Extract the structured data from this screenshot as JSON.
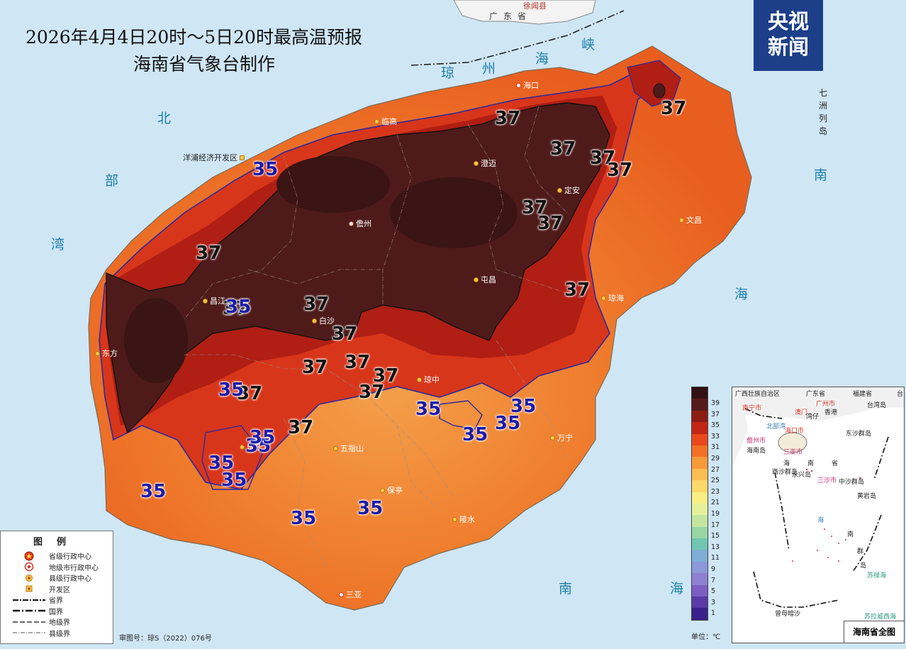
{
  "title": {
    "line1": "2026年4月4日20时～5日20时最高温预报",
    "line2": "海南省气象台制作"
  },
  "logo": {
    "line1": "央视",
    "line2": "新闻"
  },
  "sea_labels": {
    "strait": [
      "琼",
      "州",
      "海",
      "峡"
    ],
    "beibu": [
      "北",
      "部",
      "湾"
    ],
    "west_sea": "海",
    "east_south": "南",
    "east_sea": "海",
    "bottom_south": "南",
    "bottom_sea": "海",
    "qizhou": [
      "七",
      "洲",
      "列",
      "岛"
    ]
  },
  "guangdong": {
    "province": "广东省",
    "county": "徐闻县"
  },
  "cities": [
    {
      "name": "海口",
      "type": "province"
    },
    {
      "name": "临高",
      "type": "county"
    },
    {
      "name": "澄迈",
      "type": "county"
    },
    {
      "name": "定安",
      "type": "county"
    },
    {
      "name": "儋州",
      "type": "prefecture"
    },
    {
      "name": "文昌",
      "type": "county"
    },
    {
      "name": "屯昌",
      "type": "county"
    },
    {
      "name": "琼海",
      "type": "county"
    },
    {
      "name": "昌江",
      "type": "county"
    },
    {
      "name": "白沙",
      "type": "county"
    },
    {
      "name": "东方",
      "type": "county"
    },
    {
      "name": "琼中",
      "type": "county"
    },
    {
      "name": "乐东",
      "type": "county"
    },
    {
      "name": "五指山",
      "type": "county"
    },
    {
      "name": "万宁",
      "type": "county"
    },
    {
      "name": "保亭",
      "type": "county"
    },
    {
      "name": "陵水",
      "type": "county"
    },
    {
      "name": "三亚",
      "type": "prefecture"
    },
    {
      "name": "洋浦经济开发区",
      "type": "devzone"
    }
  ],
  "contour_labels": [
    "37",
    "37",
    "37",
    "37",
    "37",
    "37",
    "37",
    "37",
    "37",
    "37",
    "37",
    "37",
    "37",
    "37",
    "37",
    "37",
    "37",
    "37",
    "35",
    "35",
    "35",
    "35",
    "35",
    "35",
    "35",
    "35",
    "35",
    "35",
    "35",
    "35",
    "35",
    "35"
  ],
  "legend": {
    "title": "图例",
    "items": [
      {
        "label": "省级行政中心",
        "symbol": "province-capital-icon"
      },
      {
        "label": "地级市行政中心",
        "symbol": "prefecture-city-icon"
      },
      {
        "label": "县级行政中心",
        "symbol": "county-center-icon"
      },
      {
        "label": "开发区",
        "symbol": "devzone-icon"
      },
      {
        "label": "省界",
        "symbol": "provincial-border-icon"
      },
      {
        "label": "国界",
        "symbol": "national-border-icon"
      },
      {
        "label": "地级界",
        "symbol": "prefecture-border-icon"
      },
      {
        "label": "县级界",
        "symbol": "county-border-icon"
      }
    ]
  },
  "review_number": "审图号：琼S（2022）076号",
  "colorbar": {
    "ticks": [
      "39",
      "37",
      "35",
      "33",
      "31",
      "29",
      "27",
      "25",
      "23",
      "21",
      "19",
      "17",
      "15",
      "13",
      "11",
      "9",
      "7",
      "5",
      "3",
      "1"
    ],
    "unit": "单位：℃",
    "colors": [
      "#331012",
      "#561a1c",
      "#8c1d14",
      "#c32616",
      "#e8491a",
      "#f27125",
      "#f79a3a",
      "#fbbd52",
      "#fdd86b",
      "#f7ee84",
      "#e5f19a",
      "#c4e6a0",
      "#98d6a2",
      "#72c6b0",
      "#7eaed6",
      "#8c98d8",
      "#8d80d0",
      "#7a5ec2",
      "#5a3aa6",
      "#3a208a"
    ]
  },
  "inset": {
    "title": "海南省全图",
    "labels": [
      "广西壮族自治区",
      "广东省",
      "福建省",
      "台",
      "南宁市",
      "广州市",
      "香港",
      "澳门",
      "湾仔",
      "台湾岛",
      "北部湾",
      "海口市",
      "儋州市",
      "东沙群岛",
      "海南岛",
      "三亚市",
      "海",
      "南",
      "省",
      "西沙群岛",
      "永兴岛",
      "三沙市",
      "中沙群岛",
      "黄岩岛",
      "海",
      "南",
      "群",
      "岛",
      "苏禄海",
      "曾母暗沙",
      "苏拉威西海"
    ]
  }
}
